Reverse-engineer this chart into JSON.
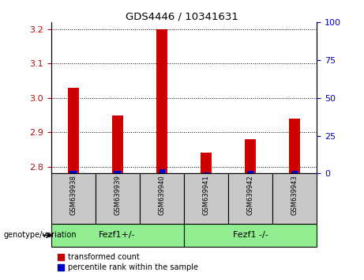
{
  "title": "GDS4446 / 10341631",
  "samples": [
    "GSM639938",
    "GSM639939",
    "GSM639940",
    "GSM639941",
    "GSM639942",
    "GSM639943"
  ],
  "red_values": [
    3.03,
    2.95,
    3.2,
    2.84,
    2.88,
    2.94
  ],
  "blue_values": [
    2,
    2,
    3,
    1,
    2,
    2
  ],
  "ylim_left": [
    2.78,
    3.22
  ],
  "ylim_right": [
    0,
    100
  ],
  "yticks_left": [
    2.8,
    2.9,
    3.0,
    3.1,
    3.2
  ],
  "yticks_right": [
    0,
    25,
    50,
    75,
    100
  ],
  "bar_baseline": 2.78,
  "group1_label": "Fezf1+/-",
  "group2_label": "Fezf1 -/-",
  "group1_indices": [
    0,
    1,
    2
  ],
  "group2_indices": [
    3,
    4,
    5
  ],
  "group_color": "#90EE90",
  "sample_bg": "#C8C8C8",
  "plot_bg": "#FFFFFF",
  "legend_red_label": "transformed count",
  "legend_blue_label": "percentile rank within the sample",
  "genotype_label": "genotype/variation",
  "red_color": "#CC0000",
  "blue_color": "#0000CC",
  "left_tick_color": "#CC0000",
  "right_tick_color": "#0000CC",
  "bar_width": 0.25
}
